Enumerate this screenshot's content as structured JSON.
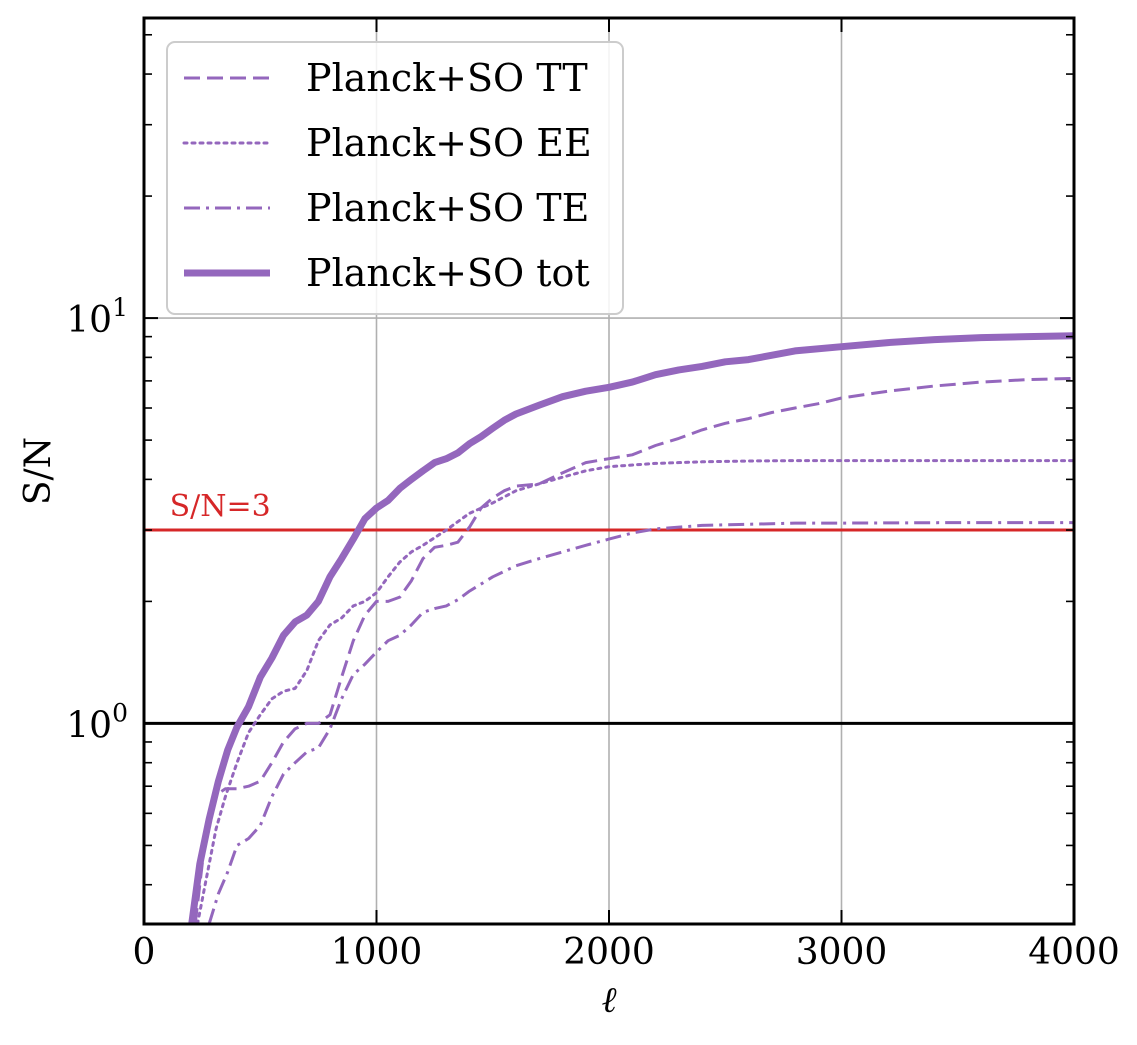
{
  "chart_data": {
    "type": "line",
    "title": "",
    "xlabel": "ℓ",
    "ylabel": "S/N",
    "xlim": [
      0,
      4000
    ],
    "ylim": [
      0.32,
      55
    ],
    "yscale": "log",
    "grid": true,
    "xticks": [
      0,
      1000,
      2000,
      3000,
      4000
    ],
    "xtick_labels": [
      "0",
      "1000",
      "2000",
      "3000",
      "4000"
    ],
    "yticks": [
      1,
      10
    ],
    "ytick_bases": [
      "10",
      "10"
    ],
    "ytick_exps": [
      "0",
      "1"
    ],
    "legend_position": "top-left",
    "colors": {
      "series": "#9467bd",
      "threshold": "#d62728",
      "reference": "#000000",
      "grid": "#b0b0b0"
    },
    "series": [
      {
        "name": "Planck+SO TT",
        "style": "dashed",
        "x": [
          220,
          260,
          300,
          350,
          400,
          450,
          500,
          550,
          600,
          650,
          700,
          750,
          800,
          850,
          900,
          950,
          1000,
          1050,
          1100,
          1150,
          1200,
          1250,
          1300,
          1350,
          1400,
          1450,
          1500,
          1550,
          1600,
          1700,
          1800,
          1900,
          2000,
          2100,
          2200,
          2300,
          2400,
          2500,
          2600,
          2700,
          2800,
          2900,
          3000,
          3200,
          3400,
          3600,
          3800,
          4000
        ],
        "values": [
          0.32,
          0.5,
          0.66,
          0.69,
          0.69,
          0.7,
          0.72,
          0.8,
          0.9,
          0.97,
          1.0,
          1.0,
          1.05,
          1.3,
          1.6,
          1.85,
          2.0,
          2.0,
          2.05,
          2.25,
          2.55,
          2.72,
          2.75,
          2.8,
          3.05,
          3.4,
          3.6,
          3.75,
          3.85,
          3.9,
          4.15,
          4.4,
          4.5,
          4.6,
          4.85,
          5.05,
          5.3,
          5.5,
          5.65,
          5.85,
          6.0,
          6.15,
          6.35,
          6.6,
          6.8,
          6.95,
          7.05,
          7.1
        ]
      },
      {
        "name": "Planck+SO EE",
        "style": "dotted",
        "x": [
          230,
          270,
          310,
          350,
          400,
          450,
          500,
          550,
          600,
          650,
          700,
          750,
          800,
          850,
          900,
          950,
          1000,
          1050,
          1100,
          1150,
          1200,
          1300,
          1400,
          1500,
          1600,
          1700,
          1800,
          1900,
          2000,
          2200,
          2400,
          2600,
          2800,
          3000,
          3200,
          3500,
          4000
        ],
        "values": [
          0.32,
          0.42,
          0.55,
          0.66,
          0.8,
          0.95,
          1.05,
          1.15,
          1.2,
          1.22,
          1.35,
          1.6,
          1.75,
          1.82,
          1.95,
          2.0,
          2.1,
          2.3,
          2.5,
          2.65,
          2.75,
          3.0,
          3.3,
          3.5,
          3.75,
          3.9,
          4.05,
          4.2,
          4.3,
          4.38,
          4.42,
          4.44,
          4.45,
          4.45,
          4.45,
          4.45,
          4.45
        ]
      },
      {
        "name": "Planck+SO TE",
        "style": "dashdot",
        "x": [
          280,
          320,
          360,
          400,
          450,
          500,
          550,
          600,
          650,
          700,
          750,
          800,
          850,
          900,
          950,
          1000,
          1050,
          1100,
          1150,
          1200,
          1250,
          1300,
          1350,
          1400,
          1500,
          1600,
          1700,
          1800,
          1900,
          2000,
          2100,
          2200,
          2400,
          2600,
          2800,
          3000,
          3500,
          4000
        ],
        "values": [
          0.32,
          0.38,
          0.43,
          0.5,
          0.52,
          0.56,
          0.66,
          0.75,
          0.8,
          0.85,
          0.87,
          0.97,
          1.15,
          1.32,
          1.4,
          1.5,
          1.6,
          1.65,
          1.75,
          1.88,
          1.92,
          1.95,
          2.02,
          2.12,
          2.3,
          2.45,
          2.55,
          2.65,
          2.75,
          2.85,
          2.95,
          3.02,
          3.08,
          3.1,
          3.12,
          3.12,
          3.13,
          3.13
        ]
      },
      {
        "name": "Planck+SO tot",
        "style": "solid-thick",
        "x": [
          205,
          240,
          280,
          320,
          360,
          400,
          450,
          500,
          550,
          600,
          650,
          700,
          750,
          800,
          850,
          900,
          950,
          1000,
          1050,
          1100,
          1150,
          1200,
          1250,
          1300,
          1350,
          1400,
          1450,
          1500,
          1550,
          1600,
          1700,
          1800,
          1900,
          2000,
          2100,
          2200,
          2300,
          2400,
          2500,
          2600,
          2800,
          3000,
          3200,
          3400,
          3600,
          3800,
          4000
        ],
        "values": [
          0.32,
          0.45,
          0.58,
          0.72,
          0.86,
          0.98,
          1.1,
          1.3,
          1.45,
          1.65,
          1.78,
          1.85,
          2.0,
          2.3,
          2.55,
          2.85,
          3.2,
          3.4,
          3.55,
          3.8,
          4.0,
          4.2,
          4.4,
          4.5,
          4.65,
          4.9,
          5.1,
          5.35,
          5.6,
          5.8,
          6.1,
          6.4,
          6.6,
          6.75,
          6.95,
          7.25,
          7.45,
          7.6,
          7.8,
          7.9,
          8.3,
          8.5,
          8.7,
          8.85,
          8.95,
          9.0,
          9.05
        ]
      }
    ],
    "hlines": [
      {
        "name": "reference",
        "y": 1.0
      },
      {
        "name": "threshold",
        "y": 3.0
      }
    ],
    "annotation": {
      "text": "S/N=3",
      "x": 110,
      "y": 3.25
    }
  }
}
